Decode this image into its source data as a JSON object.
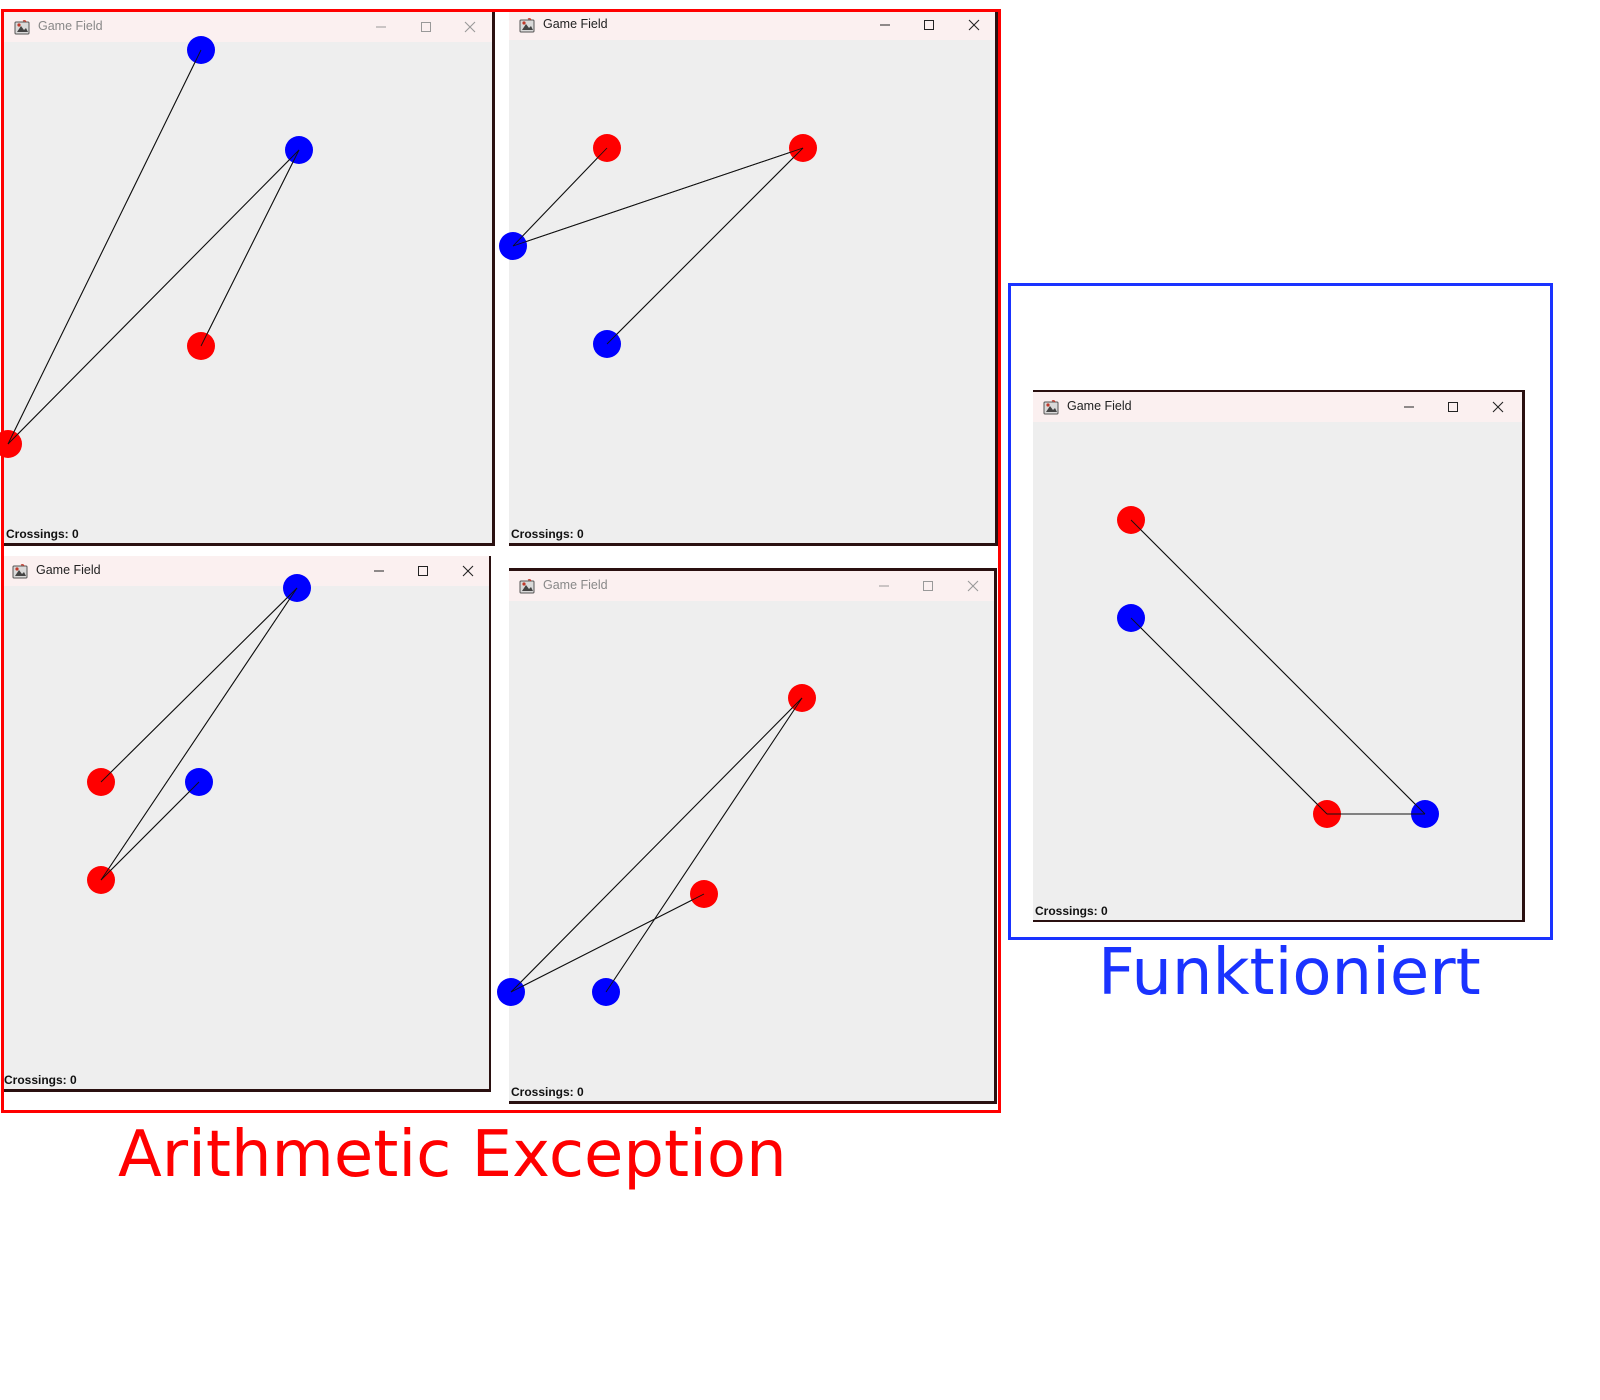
{
  "window_title": "Game Field",
  "status_label": "Crossings: 0",
  "colors": {
    "red_node": "#ff0000",
    "blue_node": "#0000ff",
    "edge": "#111111",
    "fail_frame": "#ff0000",
    "ok_frame": "#1a33ff"
  },
  "icons": {
    "app": "java-cup-icon",
    "minimize": "minimize-icon",
    "maximize": "maximize-icon",
    "close": "close-icon"
  },
  "labels": {
    "failure": "Arithmetic Exception",
    "success": "Funktioniert"
  },
  "windows": [
    {
      "id": "w1",
      "active": false,
      "nodes": [
        {
          "id": "a",
          "color": "blue"
        },
        {
          "id": "b",
          "color": "blue"
        },
        {
          "id": "c",
          "color": "red"
        },
        {
          "id": "d",
          "color": "red"
        }
      ],
      "edges": [
        [
          "a",
          "d"
        ],
        [
          "b",
          "d"
        ],
        [
          "b",
          "c"
        ]
      ]
    },
    {
      "id": "w2",
      "active": true,
      "nodes": [
        {
          "id": "a",
          "color": "red"
        },
        {
          "id": "b",
          "color": "red"
        },
        {
          "id": "c",
          "color": "blue"
        },
        {
          "id": "d",
          "color": "blue"
        }
      ],
      "edges": [
        [
          "a",
          "c"
        ],
        [
          "c",
          "b"
        ],
        [
          "b",
          "d"
        ]
      ]
    },
    {
      "id": "w3",
      "active": true,
      "nodes": [
        {
          "id": "a",
          "color": "blue"
        },
        {
          "id": "b",
          "color": "red"
        },
        {
          "id": "c",
          "color": "blue"
        },
        {
          "id": "d",
          "color": "red"
        }
      ],
      "edges": [
        [
          "a",
          "b"
        ],
        [
          "a",
          "d"
        ],
        [
          "d",
          "c"
        ]
      ]
    },
    {
      "id": "w4",
      "active": false,
      "nodes": [
        {
          "id": "a",
          "color": "red"
        },
        {
          "id": "b",
          "color": "red"
        },
        {
          "id": "c",
          "color": "blue"
        },
        {
          "id": "d",
          "color": "blue"
        }
      ],
      "edges": [
        [
          "a",
          "c"
        ],
        [
          "a",
          "d"
        ],
        [
          "d",
          "b"
        ]
      ]
    },
    {
      "id": "w5",
      "active": true,
      "nodes": [
        {
          "id": "a",
          "color": "red"
        },
        {
          "id": "b",
          "color": "blue"
        },
        {
          "id": "c",
          "color": "red"
        },
        {
          "id": "d",
          "color": "blue"
        }
      ],
      "edges": [
        [
          "a",
          "d"
        ],
        [
          "b",
          "c"
        ],
        [
          "c",
          "d"
        ]
      ]
    }
  ]
}
